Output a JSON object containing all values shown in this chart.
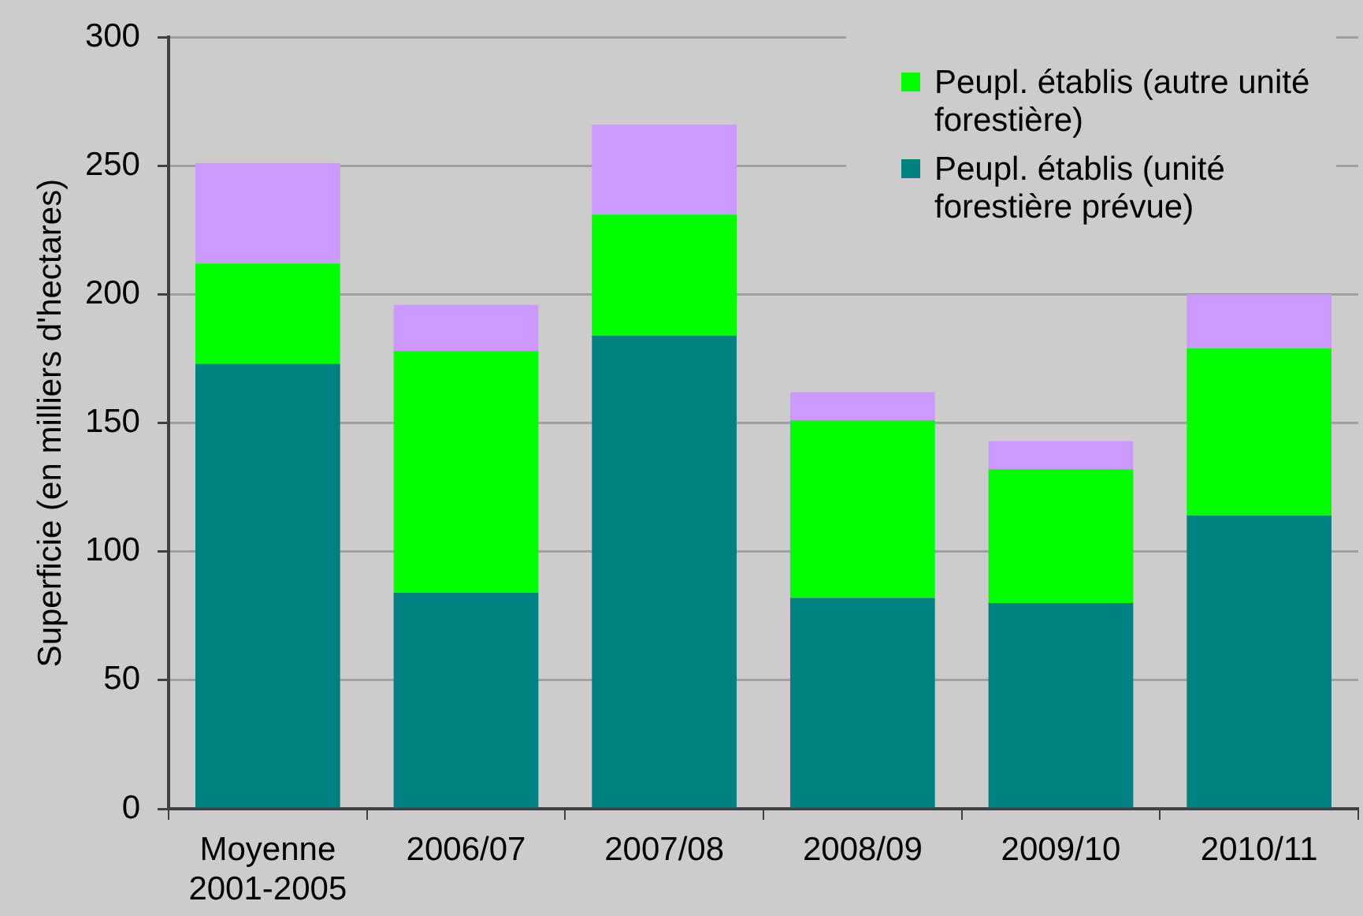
{
  "chart_data": {
    "type": "bar",
    "stacked": true,
    "ylabel": "Superficie (en milliers d'hectares)",
    "categories": [
      "Moyenne 2001-2005",
      "2006/07",
      "2007/08",
      "2008/09",
      "2009/10",
      "2010/11"
    ],
    "series": [
      {
        "name": "Peupl. établis (unité forestière prévue)",
        "color": "#008080",
        "values": [
          173,
          84,
          184,
          82,
          80,
          114
        ]
      },
      {
        "name": "Peupl. établis (autre unité forestière)",
        "color": "#00ff00",
        "values": [
          39,
          94,
          47,
          69,
          52,
          65
        ]
      },
      {
        "color": "#cc99ff",
        "values": [
          39,
          18,
          35,
          11,
          11,
          21
        ]
      }
    ],
    "ylim": [
      0,
      300
    ],
    "yticks": [
      0,
      50,
      100,
      150,
      200,
      250,
      300
    ],
    "grid": "y",
    "legend": "top right"
  }
}
